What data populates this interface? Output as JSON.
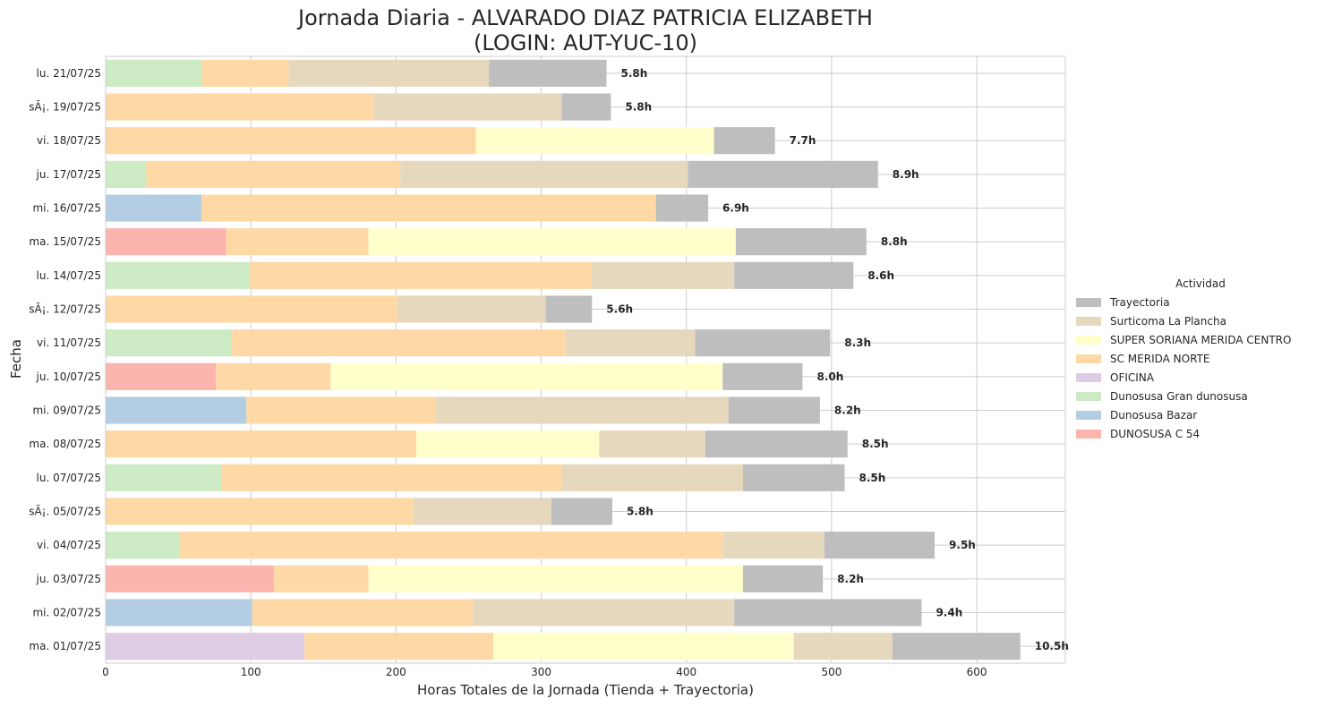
{
  "chart_data": {
    "type": "bar",
    "orientation": "horizontal",
    "stacked": true,
    "title": [
      "Jornada Diaria - ALVARADO DIAZ PATRICIA ELIZABETH",
      "(LOGIN: AUT-YUC-10)"
    ],
    "xlabel": "Horas Totales de la Jornada (Tienda + Trayectoria)",
    "ylabel": "Fecha",
    "xlim": [
      0,
      661
    ],
    "xticks": [
      0,
      100,
      200,
      300,
      400,
      500,
      600
    ],
    "grid": true,
    "legend_position": "center-right",
    "legend_title": "Actividad",
    "legend_order": [
      "Trayectoria",
      "Surticoma La Plancha",
      "SUPER SORIANA MERIDA CENTRO",
      "SC MERIDA NORTE",
      "OFICINA",
      "Dunosusa Gran dunosusa",
      "Dunosusa Bazar",
      "DUNOSUSA C 54"
    ],
    "colors": {
      "Trayectoria": "#bebebe",
      "Surticoma La Plancha": "#e5d8bd",
      "SUPER SORIANA MERIDA CENTRO": "#ffffcc",
      "SC MERIDA NORTE": "#fed9a6",
      "OFICINA": "#decbe4",
      "Dunosusa Gran dunosusa": "#ccebc5",
      "Dunosusa Bazar": "#b3cde3",
      "DUNOSUSA C 54": "#fbb4ae"
    },
    "rows": [
      {
        "date": "lu. 21/07/25",
        "total_label": "5.8h",
        "segments": [
          [
            "Dunosusa Gran dunosusa",
            66
          ],
          [
            "SC MERIDA NORTE",
            60
          ],
          [
            "Surticoma La Plancha",
            138
          ],
          [
            "Trayectoria",
            81
          ]
        ]
      },
      {
        "date": "sÃ¡. 19/07/25",
        "total_label": "5.8h",
        "segments": [
          [
            "SC MERIDA NORTE",
            185
          ],
          [
            "Surticoma La Plancha",
            129
          ],
          [
            "Trayectoria",
            34
          ]
        ]
      },
      {
        "date": "vi. 18/07/25",
        "total_label": "7.7h",
        "segments": [
          [
            "SC MERIDA NORTE",
            255
          ],
          [
            "SUPER SORIANA MERIDA CENTRO",
            164
          ],
          [
            "Trayectoria",
            42
          ]
        ]
      },
      {
        "date": "ju. 17/07/25",
        "total_label": "8.9h",
        "segments": [
          [
            "Dunosusa Gran dunosusa",
            28
          ],
          [
            "SC MERIDA NORTE",
            175
          ],
          [
            "Surticoma La Plancha",
            198
          ],
          [
            "Trayectoria",
            131
          ]
        ]
      },
      {
        "date": "mi. 16/07/25",
        "total_label": "6.9h",
        "segments": [
          [
            "Dunosusa Bazar",
            66
          ],
          [
            "SC MERIDA NORTE",
            313
          ],
          [
            "Trayectoria",
            36
          ]
        ]
      },
      {
        "date": "ma. 15/07/25",
        "total_label": "8.8h",
        "segments": [
          [
            "DUNOSUSA C 54",
            83
          ],
          [
            "SC MERIDA NORTE",
            98
          ],
          [
            "SUPER SORIANA MERIDA CENTRO",
            253
          ],
          [
            "Trayectoria",
            90
          ]
        ]
      },
      {
        "date": "lu. 14/07/25",
        "total_label": "8.6h",
        "segments": [
          [
            "Dunosusa Gran dunosusa",
            99
          ],
          [
            "SC MERIDA NORTE",
            236
          ],
          [
            "Surticoma La Plancha",
            98
          ],
          [
            "Trayectoria",
            82
          ]
        ]
      },
      {
        "date": "sÃ¡. 12/07/25",
        "total_label": "5.6h",
        "segments": [
          [
            "SC MERIDA NORTE",
            201
          ],
          [
            "Surticoma La Plancha",
            102
          ],
          [
            "Trayectoria",
            32
          ]
        ]
      },
      {
        "date": "vi. 11/07/25",
        "total_label": "8.3h",
        "segments": [
          [
            "Dunosusa Gran dunosusa",
            87
          ],
          [
            "SC MERIDA NORTE",
            230
          ],
          [
            "Surticoma La Plancha",
            89
          ],
          [
            "Trayectoria",
            93
          ]
        ]
      },
      {
        "date": "ju. 10/07/25",
        "total_label": "8.0h",
        "segments": [
          [
            "DUNOSUSA C 54",
            76
          ],
          [
            "SC MERIDA NORTE",
            79
          ],
          [
            "SUPER SORIANA MERIDA CENTRO",
            270
          ],
          [
            "Trayectoria",
            55
          ]
        ]
      },
      {
        "date": "mi. 09/07/25",
        "total_label": "8.2h",
        "segments": [
          [
            "Dunosusa Bazar",
            97
          ],
          [
            "SC MERIDA NORTE",
            130
          ],
          [
            "Surticoma La Plancha",
            202
          ],
          [
            "Trayectoria",
            63
          ]
        ]
      },
      {
        "date": "ma. 08/07/25",
        "total_label": "8.5h",
        "segments": [
          [
            "SC MERIDA NORTE",
            214
          ],
          [
            "SUPER SORIANA MERIDA CENTRO",
            126
          ],
          [
            "Surticoma La Plancha",
            73
          ],
          [
            "Trayectoria",
            98
          ]
        ]
      },
      {
        "date": "lu. 07/07/25",
        "total_label": "8.5h",
        "segments": [
          [
            "Dunosusa Gran dunosusa",
            80
          ],
          [
            "SC MERIDA NORTE",
            234
          ],
          [
            "Surticoma La Plancha",
            125
          ],
          [
            "Trayectoria",
            70
          ]
        ]
      },
      {
        "date": "sÃ¡. 05/07/25",
        "total_label": "5.8h",
        "segments": [
          [
            "SC MERIDA NORTE",
            212
          ],
          [
            "Surticoma La Plancha",
            95
          ],
          [
            "Trayectoria",
            42
          ]
        ]
      },
      {
        "date": "vi. 04/07/25",
        "total_label": "9.5h",
        "segments": [
          [
            "Dunosusa Gran dunosusa",
            51
          ],
          [
            "SC MERIDA NORTE",
            374
          ],
          [
            "Surticoma La Plancha",
            70
          ],
          [
            "Trayectoria",
            76
          ]
        ]
      },
      {
        "date": "ju. 03/07/25",
        "total_label": "8.2h",
        "segments": [
          [
            "DUNOSUSA C 54",
            116
          ],
          [
            "SC MERIDA NORTE",
            65
          ],
          [
            "SUPER SORIANA MERIDA CENTRO",
            258
          ],
          [
            "Trayectoria",
            55
          ]
        ]
      },
      {
        "date": "mi. 02/07/25",
        "total_label": "9.4h",
        "segments": [
          [
            "Dunosusa Bazar",
            101
          ],
          [
            "SC MERIDA NORTE",
            152
          ],
          [
            "Surticoma La Plancha",
            180
          ],
          [
            "Trayectoria",
            129
          ]
        ]
      },
      {
        "date": "ma. 01/07/25",
        "total_label": "10.5h",
        "segments": [
          [
            "OFICINA",
            137
          ],
          [
            "SC MERIDA NORTE",
            130
          ],
          [
            "SUPER SORIANA MERIDA CENTRO",
            207
          ],
          [
            "Surticoma La Plancha",
            68
          ],
          [
            "Trayectoria",
            88
          ]
        ]
      }
    ]
  }
}
